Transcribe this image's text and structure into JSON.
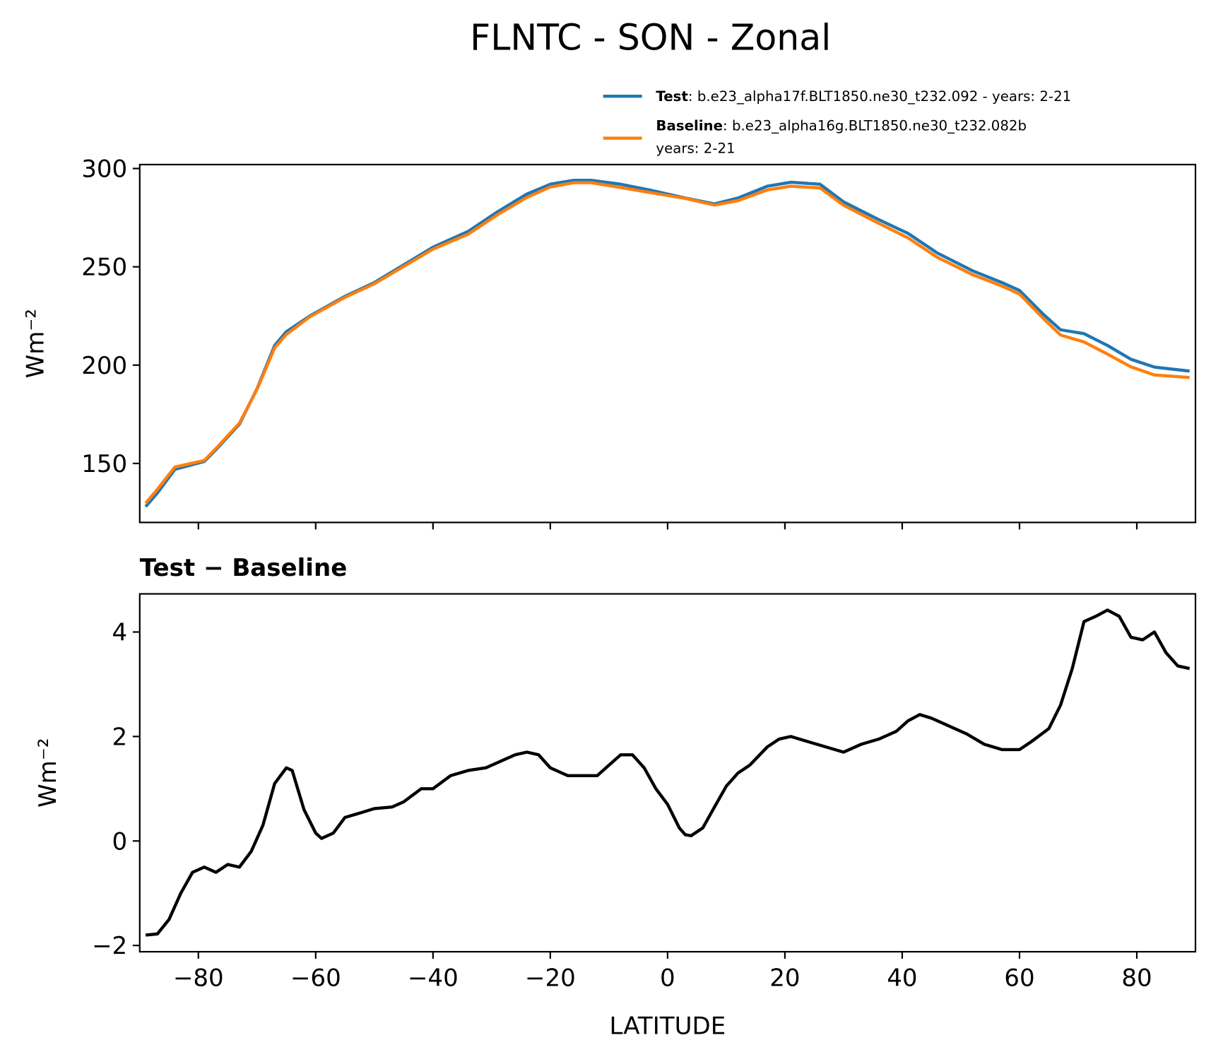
{
  "chart_data": [
    {
      "type": "line",
      "title": "FLNTC - SON - Zonal",
      "ylabel": "Wm⁻²",
      "x": [
        -89,
        -87,
        -84,
        -79,
        -77,
        -73,
        -70,
        -67,
        -65,
        -61,
        -55,
        -50,
        -45,
        -40,
        -34,
        -29,
        -24,
        -20,
        -16,
        -13,
        -8,
        -3,
        3,
        8,
        12,
        17,
        21,
        26,
        30,
        36,
        41,
        46,
        52,
        57,
        60,
        64,
        67,
        71,
        75,
        79,
        83,
        89
      ],
      "series": [
        {
          "name": "Test",
          "description": [
            ": b.e23_alpha17f.BLT1850.ne30_t232.092 - years: 2-21"
          ],
          "color": "#1f77b4",
          "values": [
            128,
            135,
            147,
            151,
            157,
            170,
            188,
            210,
            217,
            225,
            235,
            242,
            251,
            260,
            268,
            278,
            287,
            292,
            294,
            294,
            292,
            289,
            285,
            282,
            285,
            291,
            293,
            292,
            283,
            274,
            267,
            257,
            248,
            242,
            238,
            226,
            218,
            216,
            210,
            203,
            199,
            197
          ]
        },
        {
          "name": "Baseline",
          "description": [
            ": b.e23_alpha16g.BLT1850.ne30_t232.082b",
            "years: 2-21"
          ],
          "color": "#ff7f0e",
          "values": [
            129.8,
            136.8,
            148.2,
            151.5,
            157.6,
            170.5,
            187.7,
            208.8,
            215.6,
            224.6,
            234.5,
            241.4,
            250.2,
            259,
            266.6,
            276.5,
            285.3,
            290.6,
            292.8,
            292.8,
            290.3,
            287.8,
            284.8,
            281.4,
            283.7,
            289.1,
            291,
            290.1,
            281.3,
            272.1,
            264.7,
            254.8,
            246,
            240.2,
            236.2,
            223.9,
            215.3,
            211.8,
            205.6,
            199.1,
            195,
            193.7
          ]
        }
      ],
      "xlim": [
        -90,
        90
      ],
      "xticks": [
        -80,
        -60,
        -40,
        -20,
        0,
        20,
        40,
        60,
        80
      ],
      "show_xtick_labels": false,
      "ylim": [
        120,
        302
      ],
      "yticks": [
        150,
        200,
        250,
        300
      ],
      "legend": "upper right"
    },
    {
      "type": "line",
      "title": "Test − Baseline",
      "ylabel": "Wm⁻²",
      "xlabel": "LATITUDE",
      "x": [
        -89,
        -87,
        -85,
        -83,
        -81,
        -79,
        -77,
        -75,
        -73,
        -71,
        -69,
        -67,
        -65,
        -64,
        -62,
        -60,
        -59,
        -57,
        -55,
        -52,
        -50,
        -47,
        -45,
        -42,
        -40,
        -37,
        -34,
        -31,
        -29,
        -26,
        -24,
        -22,
        -20,
        -17,
        -14,
        -12,
        -10,
        -8,
        -6,
        -4,
        -2,
        0,
        2,
        3,
        4,
        6,
        8,
        10,
        12,
        14,
        17,
        19,
        21,
        24,
        27,
        30,
        33,
        36,
        39,
        41,
        43,
        45,
        48,
        51,
        54,
        57,
        60,
        62,
        65,
        67,
        69,
        71,
        73,
        75,
        77,
        79,
        81,
        83,
        85,
        87,
        89
      ],
      "series": [
        {
          "color": "#000000",
          "values": [
            -1.8,
            -1.78,
            -1.5,
            -1.0,
            -0.6,
            -0.5,
            -0.6,
            -0.45,
            -0.5,
            -0.2,
            0.3,
            1.1,
            1.4,
            1.35,
            0.6,
            0.15,
            0.05,
            0.15,
            0.45,
            0.55,
            0.62,
            0.65,
            0.75,
            1.0,
            1.0,
            1.25,
            1.35,
            1.4,
            1.5,
            1.65,
            1.7,
            1.65,
            1.4,
            1.25,
            1.25,
            1.25,
            1.45,
            1.65,
            1.65,
            1.4,
            1.0,
            0.7,
            0.25,
            0.12,
            0.1,
            0.25,
            0.65,
            1.05,
            1.3,
            1.45,
            1.8,
            1.95,
            2.0,
            1.9,
            1.8,
            1.7,
            1.85,
            1.95,
            2.1,
            2.3,
            2.42,
            2.35,
            2.2,
            2.05,
            1.85,
            1.75,
            1.75,
            1.9,
            2.15,
            2.6,
            3.3,
            4.2,
            4.3,
            4.42,
            4.3,
            3.9,
            3.85,
            4.0,
            3.6,
            3.35,
            3.3
          ]
        }
      ],
      "xlim": [
        -90,
        90
      ],
      "xticks": [
        {
          "value": -80,
          "label": "−80"
        },
        {
          "value": -60,
          "label": "−60"
        },
        {
          "value": -40,
          "label": "−40"
        },
        {
          "value": -20,
          "label": "−20"
        },
        0,
        20,
        40,
        60,
        80
      ],
      "show_xtick_labels": true,
      "ylim": [
        -2.12,
        4.73
      ],
      "yticks": [
        {
          "value": -2,
          "label": "−2"
        },
        0,
        2,
        4
      ]
    }
  ]
}
